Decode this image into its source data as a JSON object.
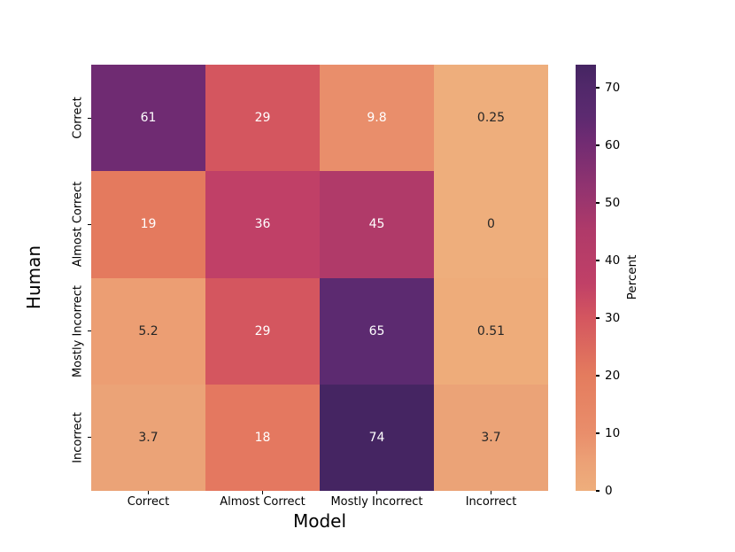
{
  "figure": {
    "background": "#ffffff",
    "text_color": "#000000"
  },
  "chart_data": {
    "type": "heatmap",
    "title": "",
    "xlabel": "Model",
    "ylabel": "Human",
    "x_categories": [
      "Correct",
      "Almost Correct",
      "Mostly Incorrect",
      "Incorrect"
    ],
    "y_categories": [
      "Correct",
      "Almost Correct",
      "Mostly Incorrect",
      "Incorrect"
    ],
    "values": [
      [
        61,
        29,
        9.8,
        0.25
      ],
      [
        19,
        36,
        45,
        0
      ],
      [
        5.2,
        29,
        65,
        0.51
      ],
      [
        3.7,
        18,
        74,
        3.7
      ]
    ],
    "cell_labels": [
      [
        "61",
        "29",
        "9.8",
        "0.25"
      ],
      [
        "19",
        "36",
        "45",
        "0"
      ],
      [
        "5.2",
        "29",
        "65",
        "0.51"
      ],
      [
        "3.7",
        "18",
        "74",
        "3.7"
      ]
    ],
    "cell_colors": [
      [
        "#6f2b72",
        "#d4565f",
        "#e98e6b",
        "#eeae7c"
      ],
      [
        "#e47a5e",
        "#c04067",
        "#b03a69",
        "#eeae7c"
      ],
      [
        "#ec9e73",
        "#d4565f",
        "#5c2a70",
        "#eeac7a"
      ],
      [
        "#eba377",
        "#e47860",
        "#452562",
        "#eba377"
      ]
    ],
    "cell_text_colors": [
      [
        "#ffffff",
        "#ffffff",
        "#ffffff",
        "#262626"
      ],
      [
        "#ffffff",
        "#ffffff",
        "#ffffff",
        "#262626"
      ],
      [
        "#262626",
        "#ffffff",
        "#ffffff",
        "#262626"
      ],
      [
        "#262626",
        "#ffffff",
        "#ffffff",
        "#262626"
      ]
    ],
    "grid": false,
    "legend_position": "colorbar-right",
    "colorbar": {
      "label": "Percent",
      "tick_labels": [
        "0",
        "10",
        "20",
        "30",
        "40",
        "50",
        "60",
        "70"
      ],
      "tick_values": [
        0,
        10,
        20,
        30,
        40,
        50,
        60,
        70
      ],
      "vmin": 0,
      "vmax": 74,
      "gradient_stops": [
        {
          "value": 0,
          "color": "#eeae7c"
        },
        {
          "value": 5,
          "color": "#eca176"
        },
        {
          "value": 10,
          "color": "#e98e6b"
        },
        {
          "value": 20,
          "color": "#e47c5e"
        },
        {
          "value": 30,
          "color": "#d4565f"
        },
        {
          "value": 36,
          "color": "#c04067"
        },
        {
          "value": 45,
          "color": "#b03a69"
        },
        {
          "value": 53,
          "color": "#903370"
        },
        {
          "value": 61,
          "color": "#6f2b72"
        },
        {
          "value": 65,
          "color": "#5c2a70"
        },
        {
          "value": 70,
          "color": "#51286a"
        },
        {
          "value": 74,
          "color": "#452562"
        }
      ]
    }
  }
}
